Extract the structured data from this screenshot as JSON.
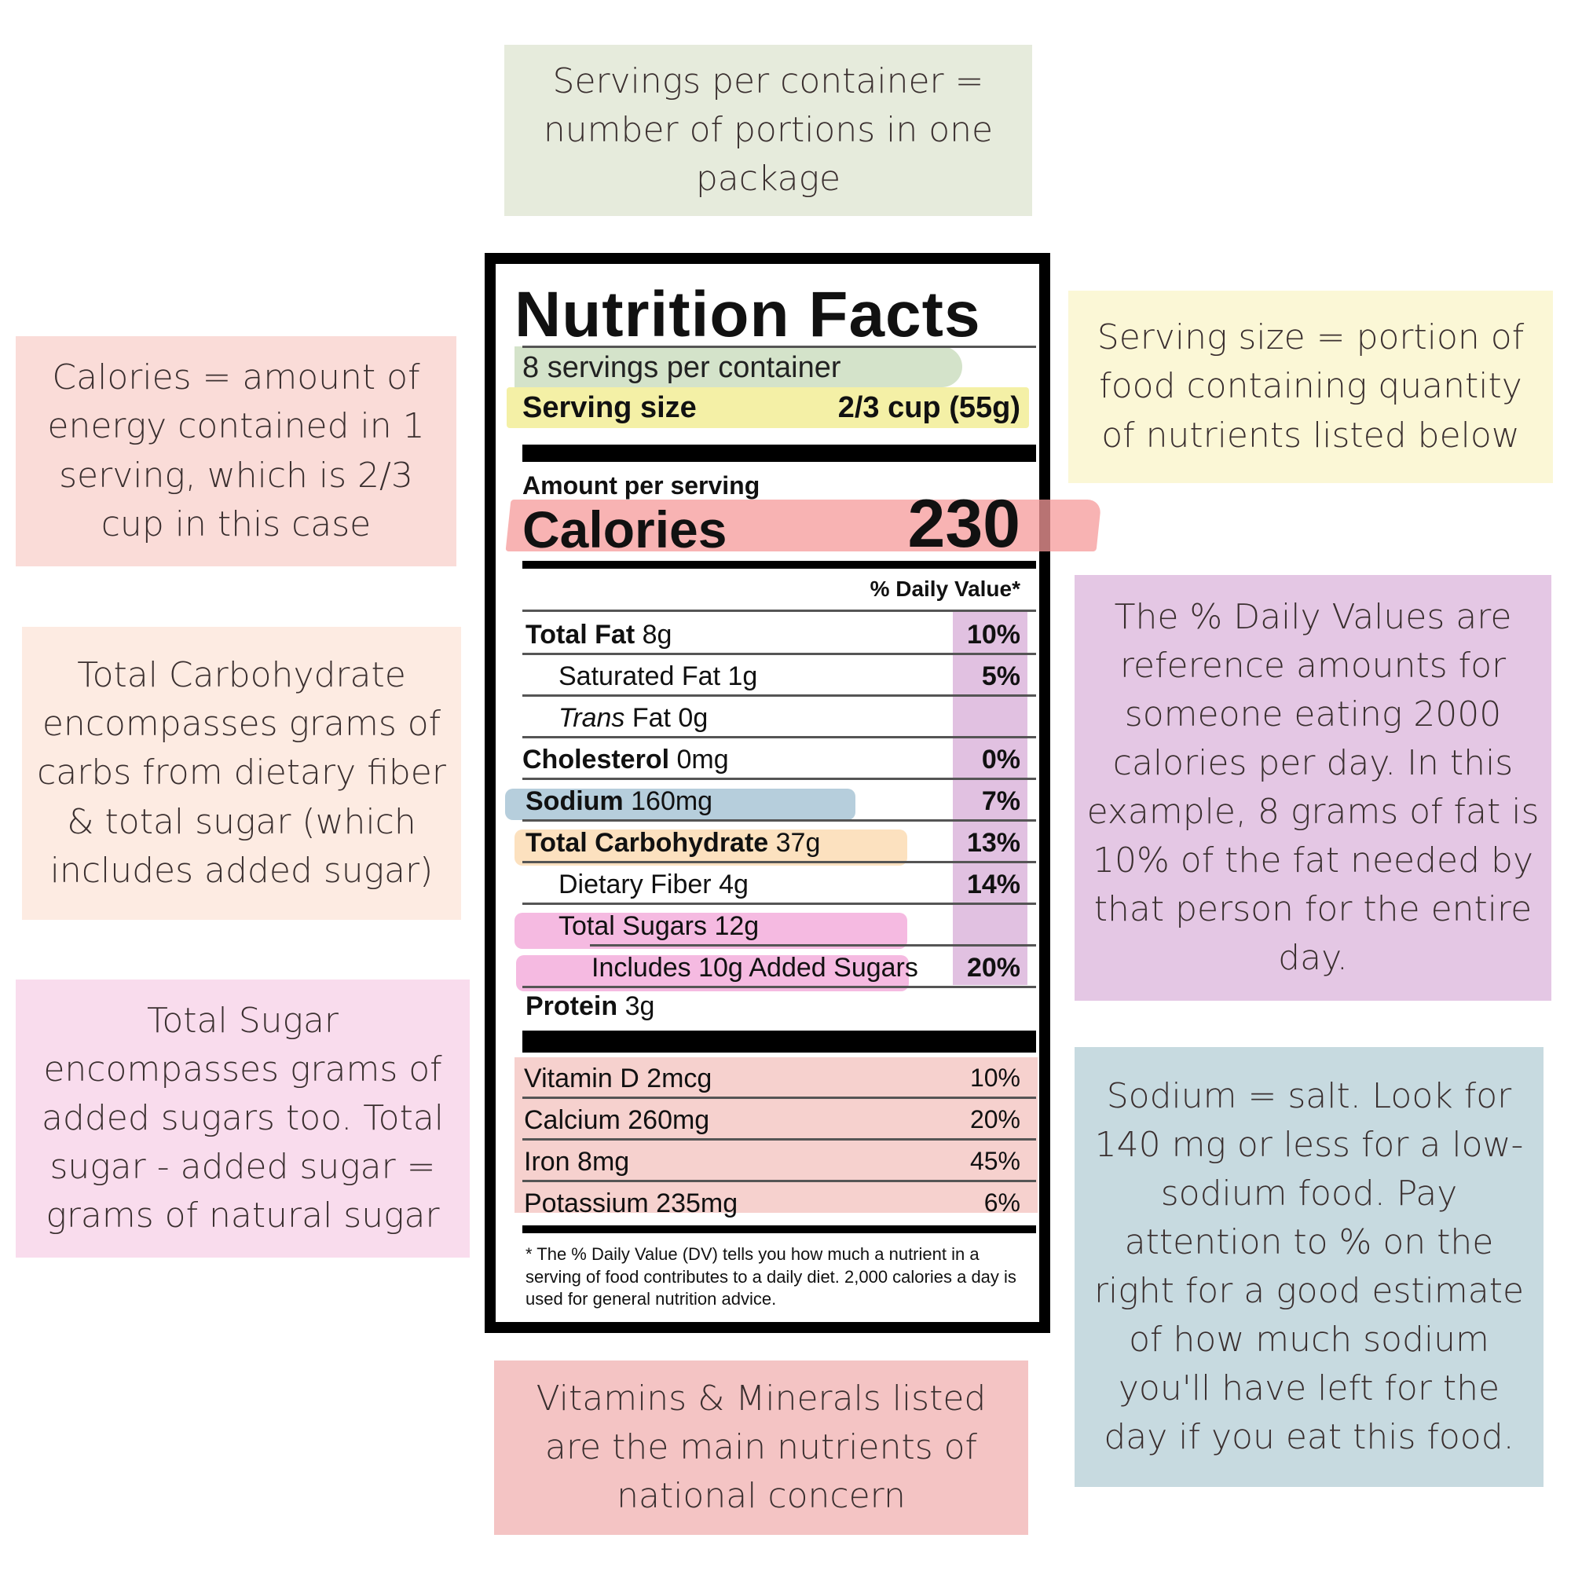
{
  "colors": {
    "servings_note_bg": "#e6ebdc",
    "serving_size_note_bg": "#fbf7d6",
    "calories_note_bg": "#fadcd8",
    "carb_note_bg": "#fdebe2",
    "sugar_note_bg": "#f9dced",
    "daily_value_note_bg": "#e4c7e4",
    "sodium_note_bg": "#c7dae0",
    "vitamins_note_bg": "#f4c4c4",
    "hl_servings": "#c9dcbd",
    "hl_serving_size": "#f3ee9c",
    "hl_calories": "#f59a9a",
    "hl_sodium": "#a9c6d6",
    "hl_carb": "#fbdcb4",
    "hl_sugars": "#f4b3de",
    "hl_daily_value": "#dcb6dc",
    "hl_vitamins": "#f5c9c6"
  },
  "notes": {
    "servings_per_container": "Servings per container = number of portions in one package",
    "serving_size": "Serving size = portion of food containing quantity of nutrients listed below",
    "calories": "Calories = amount of energy contained in 1 serving, which is 2/3 cup in this case",
    "total_carbohydrate": "Total Carbohydrate encompasses grams of carbs from dietary fiber & total sugar (which includes added sugar)",
    "total_sugar": "Total Sugar encompasses grams of added sugars too. Total sugar - added sugar = grams of natural sugar",
    "daily_values": "The % Daily Values are reference amounts for someone eating 2000 calories per day. In this example, 8 grams of fat is 10% of the fat needed by that person for the entire day.",
    "sodium": "Sodium = salt. Look for 140 mg or less for a low-sodium food. Pay attention to % on the right for a good estimate of how much sodium you'll have left for the day if you eat this food.",
    "vitamins_minerals": "Vitamins & Minerals listed are the main nutrients of national concern"
  },
  "label": {
    "title": "Nutrition Facts",
    "servings_per_container": "8 servings per container",
    "serving_size_label": "Serving size",
    "serving_size_value": "2/3 cup (55g)",
    "amount_per_serving": "Amount per serving",
    "calories_label": "Calories",
    "calories_value": "230",
    "daily_value_header": "% Daily Value*",
    "nutrients": [
      {
        "name": "Total Fat",
        "amount": "8g",
        "dv": "10%"
      },
      {
        "name": "Saturated Fat",
        "amount": "1g",
        "dv": "5%"
      },
      {
        "name": "Trans",
        "name_suffix": " Fat",
        "amount": "0g",
        "dv": ""
      },
      {
        "name": "Cholesterol",
        "amount": "0mg",
        "dv": "0%"
      },
      {
        "name": "Sodium",
        "amount": "160mg",
        "dv": "7%"
      },
      {
        "name": "Total Carbohydrate",
        "amount": "37g",
        "dv": "13%"
      },
      {
        "name": "Dietary Fiber",
        "amount": "4g",
        "dv": "14%"
      },
      {
        "name": "Total Sugars",
        "amount": "12g",
        "dv": ""
      },
      {
        "name": "Includes 10g Added Sugars",
        "amount": "",
        "dv": "20%"
      },
      {
        "name": "Protein",
        "amount": "3g",
        "dv": ""
      }
    ],
    "vitamins": [
      {
        "name": "Vitamin D 2mcg",
        "dv": "10%"
      },
      {
        "name": "Calcium 260mg",
        "dv": "20%"
      },
      {
        "name": "Iron 8mg",
        "dv": "45%"
      },
      {
        "name": "Potassium 235mg",
        "dv": "6%"
      }
    ],
    "footnote": "* The % Daily Value (DV) tells you how much a nutrient in a serving of food contributes to a daily diet. 2,000 calories a day is used for general nutrition advice."
  }
}
